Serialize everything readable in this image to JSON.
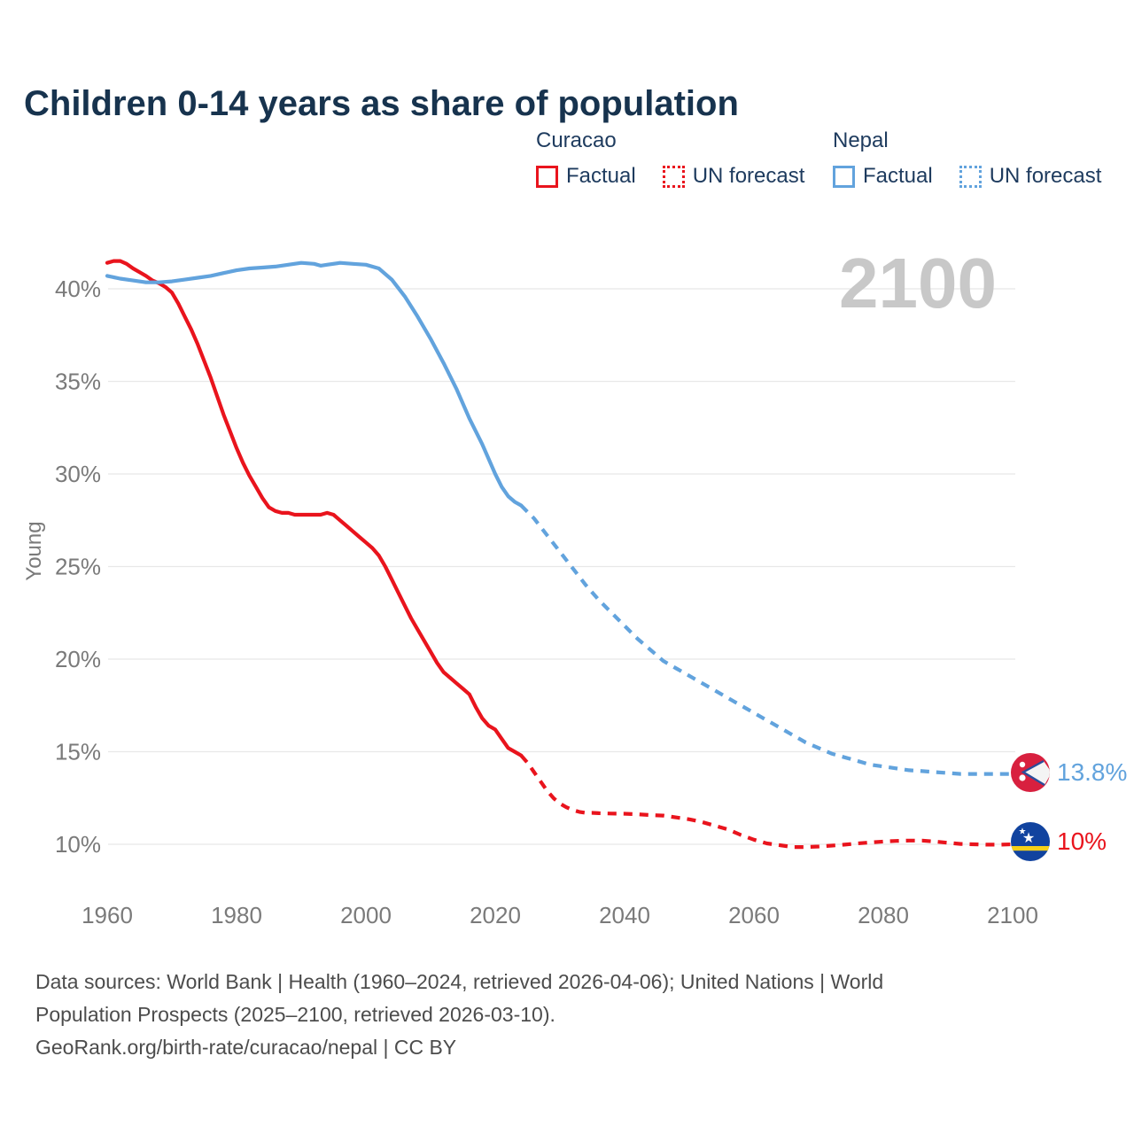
{
  "header": {
    "title": "Children 0-14 years as share of population"
  },
  "watermark": "2100",
  "legend": {
    "curacao": {
      "name": "Curacao",
      "factual_label": "Factual",
      "forecast_label": "UN forecast",
      "color": "#e9141d"
    },
    "nepal": {
      "name": "Nepal",
      "factual_label": "Factual",
      "forecast_label": "UN forecast",
      "color": "#62a3dd"
    }
  },
  "end_labels": {
    "nepal": {
      "value": "13.8%",
      "flag": "nepal-flag"
    },
    "curacao": {
      "value": "10%",
      "flag": "curacao-flag"
    }
  },
  "footer": {
    "lines": [
      "Data sources: World Bank | Health (1960–2024, retrieved 2026-04-06); United Nations | World",
      "Population Prospects (2025–2100, retrieved 2026-03-10).",
      "GeoRank.org/birth-rate/curacao/nepal | CC BY"
    ]
  },
  "chart_data": {
    "type": "line",
    "title": "Children 0-14 years as share of population",
    "xlabel": "",
    "ylabel": "Young",
    "ylim": [
      8.5,
      43.5
    ],
    "xlim": [
      1957,
      2112
    ],
    "grid": "horizontal",
    "legend_position": "top",
    "y_ticks": [
      {
        "value": 40,
        "label": "40%"
      },
      {
        "value": 35,
        "label": "35%"
      },
      {
        "value": 30,
        "label": "30%"
      },
      {
        "value": 25,
        "label": "25%"
      },
      {
        "value": 20,
        "label": "20%"
      },
      {
        "value": 15,
        "label": "15%"
      },
      {
        "value": 10,
        "label": "10%"
      }
    ],
    "x_ticks": [
      {
        "value": 1960,
        "label": "1960"
      },
      {
        "value": 1980,
        "label": "1980"
      },
      {
        "value": 2000,
        "label": "2000"
      },
      {
        "value": 2020,
        "label": "2020"
      },
      {
        "value": 2040,
        "label": "2040"
      },
      {
        "value": 2060,
        "label": "2060"
      },
      {
        "value": 2080,
        "label": "2080"
      },
      {
        "value": 2100,
        "label": "2100"
      }
    ],
    "series": [
      {
        "name": "Curacao Factual",
        "country": "Curacao",
        "style": "solid",
        "color": "#e9141d",
        "points": [
          [
            1960,
            41.4
          ],
          [
            1961,
            41.5
          ],
          [
            1962,
            41.5
          ],
          [
            1963,
            41.35
          ],
          [
            1964,
            41.1
          ],
          [
            1965,
            40.9
          ],
          [
            1966,
            40.7
          ],
          [
            1967,
            40.45
          ],
          [
            1968,
            40.3
          ],
          [
            1969,
            40.1
          ],
          [
            1970,
            39.8
          ],
          [
            1971,
            39.2
          ],
          [
            1972,
            38.5
          ],
          [
            1973,
            37.8
          ],
          [
            1974,
            37.0
          ],
          [
            1975,
            36.1
          ],
          [
            1976,
            35.2
          ],
          [
            1977,
            34.2
          ],
          [
            1978,
            33.2
          ],
          [
            1979,
            32.3
          ],
          [
            1980,
            31.4
          ],
          [
            1981,
            30.6
          ],
          [
            1982,
            29.9
          ],
          [
            1983,
            29.3
          ],
          [
            1984,
            28.7
          ],
          [
            1985,
            28.2
          ],
          [
            1986,
            28.0
          ],
          [
            1987,
            27.9
          ],
          [
            1988,
            27.9
          ],
          [
            1989,
            27.8
          ],
          [
            1990,
            27.8
          ],
          [
            1991,
            27.8
          ],
          [
            1992,
            27.8
          ],
          [
            1993,
            27.8
          ],
          [
            1994,
            27.9
          ],
          [
            1995,
            27.8
          ],
          [
            1996,
            27.5
          ],
          [
            1997,
            27.2
          ],
          [
            1998,
            26.9
          ],
          [
            1999,
            26.6
          ],
          [
            2000,
            26.3
          ],
          [
            2001,
            26.0
          ],
          [
            2002,
            25.6
          ],
          [
            2003,
            25.0
          ],
          [
            2004,
            24.3
          ],
          [
            2005,
            23.6
          ],
          [
            2006,
            22.9
          ],
          [
            2007,
            22.2
          ],
          [
            2008,
            21.6
          ],
          [
            2009,
            21.0
          ],
          [
            2010,
            20.4
          ],
          [
            2011,
            19.8
          ],
          [
            2012,
            19.3
          ],
          [
            2013,
            19.0
          ],
          [
            2014,
            18.7
          ],
          [
            2015,
            18.4
          ],
          [
            2016,
            18.1
          ],
          [
            2017,
            17.4
          ],
          [
            2018,
            16.8
          ],
          [
            2019,
            16.4
          ],
          [
            2020,
            16.2
          ],
          [
            2021,
            15.7
          ],
          [
            2022,
            15.2
          ],
          [
            2023,
            15.0
          ],
          [
            2024,
            14.8
          ]
        ]
      },
      {
        "name": "Curacao UN forecast",
        "country": "Curacao",
        "style": "dashed",
        "color": "#e9141d",
        "points": [
          [
            2024,
            14.8
          ],
          [
            2025,
            14.4
          ],
          [
            2026,
            13.9
          ],
          [
            2027,
            13.4
          ],
          [
            2028,
            12.9
          ],
          [
            2029,
            12.5
          ],
          [
            2030,
            12.2
          ],
          [
            2031,
            12.0
          ],
          [
            2032,
            11.85
          ],
          [
            2033,
            11.75
          ],
          [
            2034,
            11.7
          ],
          [
            2035,
            11.7
          ],
          [
            2036,
            11.68
          ],
          [
            2038,
            11.66
          ],
          [
            2040,
            11.65
          ],
          [
            2042,
            11.62
          ],
          [
            2044,
            11.58
          ],
          [
            2046,
            11.55
          ],
          [
            2048,
            11.45
          ],
          [
            2050,
            11.35
          ],
          [
            2052,
            11.2
          ],
          [
            2054,
            11.0
          ],
          [
            2056,
            10.8
          ],
          [
            2058,
            10.5
          ],
          [
            2060,
            10.25
          ],
          [
            2062,
            10.05
          ],
          [
            2064,
            9.95
          ],
          [
            2066,
            9.85
          ],
          [
            2068,
            9.85
          ],
          [
            2070,
            9.88
          ],
          [
            2072,
            9.93
          ],
          [
            2074,
            9.98
          ],
          [
            2076,
            10.05
          ],
          [
            2078,
            10.1
          ],
          [
            2080,
            10.15
          ],
          [
            2082,
            10.18
          ],
          [
            2084,
            10.2
          ],
          [
            2086,
            10.2
          ],
          [
            2088,
            10.15
          ],
          [
            2090,
            10.08
          ],
          [
            2092,
            10.02
          ],
          [
            2094,
            10.0
          ],
          [
            2096,
            9.98
          ],
          [
            2098,
            9.98
          ],
          [
            2100,
            10.0
          ]
        ]
      },
      {
        "name": "Nepal Factual",
        "country": "Nepal",
        "style": "solid",
        "color": "#62a3dd",
        "points": [
          [
            1960,
            40.7
          ],
          [
            1962,
            40.55
          ],
          [
            1964,
            40.45
          ],
          [
            1966,
            40.35
          ],
          [
            1968,
            40.35
          ],
          [
            1970,
            40.4
          ],
          [
            1972,
            40.5
          ],
          [
            1974,
            40.6
          ],
          [
            1976,
            40.7
          ],
          [
            1978,
            40.85
          ],
          [
            1980,
            41.0
          ],
          [
            1982,
            41.1
          ],
          [
            1984,
            41.15
          ],
          [
            1986,
            41.2
          ],
          [
            1988,
            41.3
          ],
          [
            1990,
            41.4
          ],
          [
            1992,
            41.35
          ],
          [
            1993,
            41.25
          ],
          [
            1994,
            41.3
          ],
          [
            1996,
            41.4
          ],
          [
            1998,
            41.35
          ],
          [
            2000,
            41.3
          ],
          [
            2002,
            41.1
          ],
          [
            2004,
            40.5
          ],
          [
            2006,
            39.6
          ],
          [
            2008,
            38.5
          ],
          [
            2010,
            37.3
          ],
          [
            2012,
            36.0
          ],
          [
            2014,
            34.6
          ],
          [
            2016,
            33.0
          ],
          [
            2018,
            31.6
          ],
          [
            2020,
            30.0
          ],
          [
            2021,
            29.3
          ],
          [
            2022,
            28.8
          ],
          [
            2023,
            28.5
          ],
          [
            2024,
            28.3
          ]
        ]
      },
      {
        "name": "Nepal UN forecast",
        "country": "Nepal",
        "style": "dashed",
        "color": "#62a3dd",
        "points": [
          [
            2024,
            28.3
          ],
          [
            2026,
            27.6
          ],
          [
            2028,
            26.7
          ],
          [
            2030,
            25.8
          ],
          [
            2032,
            24.9
          ],
          [
            2034,
            24.0
          ],
          [
            2036,
            23.2
          ],
          [
            2038,
            22.5
          ],
          [
            2040,
            21.8
          ],
          [
            2042,
            21.1
          ],
          [
            2044,
            20.5
          ],
          [
            2046,
            19.9
          ],
          [
            2048,
            19.5
          ],
          [
            2050,
            19.1
          ],
          [
            2052,
            18.7
          ],
          [
            2054,
            18.3
          ],
          [
            2056,
            17.9
          ],
          [
            2058,
            17.5
          ],
          [
            2060,
            17.1
          ],
          [
            2062,
            16.7
          ],
          [
            2064,
            16.3
          ],
          [
            2066,
            15.9
          ],
          [
            2068,
            15.5
          ],
          [
            2070,
            15.2
          ],
          [
            2072,
            14.9
          ],
          [
            2074,
            14.7
          ],
          [
            2076,
            14.5
          ],
          [
            2078,
            14.3
          ],
          [
            2080,
            14.2
          ],
          [
            2082,
            14.1
          ],
          [
            2084,
            14.0
          ],
          [
            2086,
            13.95
          ],
          [
            2088,
            13.9
          ],
          [
            2090,
            13.85
          ],
          [
            2092,
            13.8
          ],
          [
            2094,
            13.8
          ],
          [
            2096,
            13.8
          ],
          [
            2098,
            13.8
          ],
          [
            2100,
            13.8
          ]
        ]
      }
    ]
  }
}
